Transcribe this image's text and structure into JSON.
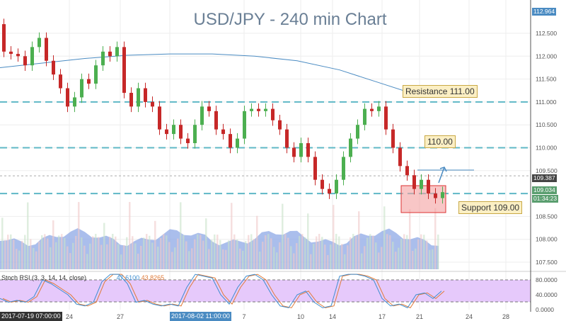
{
  "chart_data": {
    "type": "candlestick",
    "title": "USD/JPY - 240 min Chart",
    "ylim": [
      107.3,
      113.0
    ],
    "y_ticks": [
      "112.500",
      "112.000",
      "111.500",
      "111.000",
      "110.500",
      "110.000",
      "109.500",
      "108.500",
      "108.000",
      "107.500"
    ],
    "x_ticks": [
      "24",
      "27",
      "7",
      "10",
      "14",
      "17",
      "21",
      "24",
      "28"
    ],
    "closes": [
      112.7,
      112.1,
      112.05,
      112.0,
      111.8,
      112.2,
      112.4,
      111.9,
      111.6,
      111.3,
      110.9,
      111.1,
      111.5,
      111.4,
      111.8,
      112.1,
      112.0,
      112.2,
      111.2,
      110.9,
      111.3,
      111.0,
      110.9,
      110.4,
      110.3,
      110.5,
      110.2,
      110.1,
      110.5,
      110.9,
      110.8,
      110.4,
      110.3,
      110.0,
      110.2,
      110.8,
      110.85,
      110.8,
      110.85,
      110.6,
      110.4,
      110.0,
      109.8,
      110.1,
      109.8,
      109.3,
      109.1,
      109.0,
      109.3,
      109.8,
      110.2,
      110.5,
      110.85,
      110.8,
      110.9,
      110.4,
      110.0,
      109.6,
      109.4,
      109.1,
      109.3,
      109.0,
      108.9,
      109.03
    ],
    "moving_average": [
      111.75,
      111.85,
      111.95,
      112.02,
      112.05,
      112.05,
      112.0,
      111.9,
      111.7,
      111.4,
      111.1
    ],
    "horizontal_levels": [
      111.0,
      110.0,
      109.0
    ],
    "annotations": {
      "resistance": "Resistance 111.00",
      "mid": "110.00",
      "support": "Support 109.00"
    },
    "price_tags": {
      "high": "112.964",
      "crosshair": "109.387",
      "last": "109.034",
      "countdown": "01:34:23"
    },
    "time_tags": {
      "left": "2017-07-19 07:00:00",
      "mid": "2017-08-02 11:00:00"
    },
    "indicator": {
      "name": "Stoch RSI (3, 3, 14, 14, close)",
      "k_value": "47.6100",
      "d_value": "43.8265",
      "y_ticks": [
        "80.0000",
        "40.0000",
        "0.0000"
      ],
      "k": [
        30,
        20,
        25,
        20,
        35,
        80,
        70,
        55,
        40,
        15,
        10,
        20,
        75,
        95,
        95,
        70,
        20,
        25,
        15,
        10,
        15,
        10,
        60,
        95,
        90,
        85,
        40,
        15,
        60,
        90,
        95,
        80,
        40,
        10,
        5,
        40,
        50,
        20,
        5,
        10,
        90,
        95,
        95,
        90,
        80,
        30,
        10,
        15,
        5,
        40,
        45,
        30,
        50
      ]
    },
    "colors": {
      "up": "#4caf50",
      "down": "#c62828",
      "ma": "#4a8bc2",
      "levels": "#5fb8c6",
      "k": "#3e8ed0",
      "d": "#e07b39",
      "band": "#e6c9fb"
    }
  }
}
